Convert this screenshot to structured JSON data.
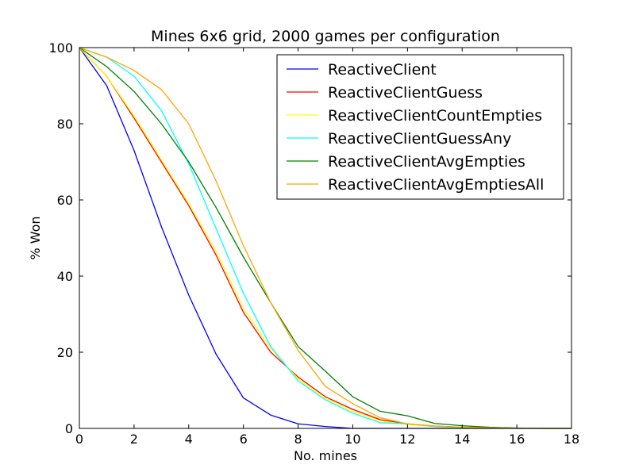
{
  "chart_data": {
    "type": "line",
    "title": "Mines 6x6 grid, 2000 games per configuration",
    "xlabel": "No. mines",
    "ylabel": "% Won",
    "xlim": [
      0,
      18
    ],
    "ylim": [
      0,
      100
    ],
    "xticks": [
      0,
      2,
      4,
      6,
      8,
      10,
      12,
      14,
      16,
      18
    ],
    "yticks": [
      0,
      20,
      40,
      60,
      80,
      100
    ],
    "grid": false,
    "legend_position": "top-right",
    "x": [
      0,
      1,
      2,
      3,
      4,
      5,
      6,
      7,
      8,
      9,
      10,
      11,
      12,
      13,
      14,
      15,
      16,
      17,
      18
    ],
    "series": [
      {
        "name": "ReactiveClient",
        "color": "#0000ff",
        "values": [
          100,
          90,
          73,
          53,
          35,
          19.5,
          8,
          3.5,
          1.2,
          0.5,
          0,
          0,
          0,
          0,
          0,
          0,
          0,
          0,
          0
        ]
      },
      {
        "name": "ReactiveClientGuess",
        "color": "#ff0000",
        "values": [
          100,
          92.5,
          81.5,
          70,
          58.5,
          45.5,
          30.5,
          20,
          13.5,
          8.3,
          5,
          2.3,
          1.2,
          0.6,
          0.3,
          0.15,
          0.05,
          0,
          0
        ]
      },
      {
        "name": "ReactiveClientCountEmpties",
        "color": "#ffff00",
        "values": [
          100,
          92.5,
          82,
          70.5,
          59,
          46.5,
          31.5,
          21,
          13,
          8,
          4.5,
          2,
          1,
          0.5,
          0.3,
          0.1,
          0.05,
          0,
          0
        ]
      },
      {
        "name": "ReactiveClientGuessAny",
        "color": "#00ffff",
        "values": [
          100,
          97.5,
          92.5,
          83.5,
          69.5,
          52.5,
          35.5,
          21.5,
          12.5,
          7.5,
          4,
          1.5,
          1.2,
          0.5,
          0.2,
          0.1,
          0,
          0,
          0
        ]
      },
      {
        "name": "ReactiveClientAvgEmpties",
        "color": "#008000",
        "values": [
          100,
          95,
          88.5,
          80,
          70,
          58,
          45,
          33,
          21.5,
          15,
          8.3,
          4.5,
          3.3,
          1.3,
          0.7,
          0.3,
          0.1,
          0,
          0
        ]
      },
      {
        "name": "ReactiveClientAvgEmptiesAll",
        "color": "#ffa500",
        "values": [
          100,
          97.5,
          94,
          89,
          80,
          65,
          48,
          33,
          20.5,
          11,
          6.5,
          2.8,
          1.2,
          0.6,
          0.3,
          0.15,
          0.05,
          0,
          0
        ]
      }
    ]
  }
}
